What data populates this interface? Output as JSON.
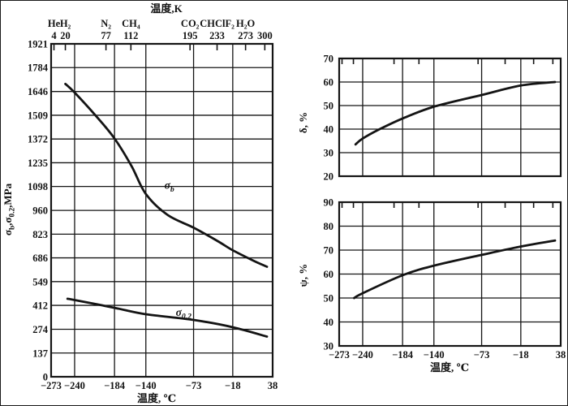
{
  "figure": {
    "background": "#ffffff",
    "ink_color": "#141414",
    "description_visible_text_only": true
  },
  "chart_data": [
    {
      "id": "stress",
      "type": "line",
      "x_axis": {
        "label": "温度, ℃",
        "ticks": [
          -273,
          -240,
          -184,
          -140,
          -73,
          -18,
          38
        ],
        "min_c": -273,
        "max_c": 38,
        "scale": "linear-in-kelvin"
      },
      "top_axis": {
        "label": "温度,K",
        "ticks": [
          {
            "k": 4,
            "gas": "He"
          },
          {
            "k": 20,
            "gas": "H₂"
          },
          {
            "k": 77,
            "gas": "N₂"
          },
          {
            "k": 112,
            "gas": "CH₄"
          },
          {
            "k": 195,
            "gas": "CO₂"
          },
          {
            "k": 233,
            "gas": "CHClF₂"
          },
          {
            "k": 273,
            "gas": "H₂O"
          },
          {
            "k": 300,
            "gas": ""
          }
        ]
      },
      "y_axis": {
        "label_parts": [
          {
            "t": "σ"
          },
          {
            "t": "b",
            "sub": true
          },
          {
            "t": ","
          },
          {
            "t": "σ"
          },
          {
            "t": "0.2",
            "sub": true
          },
          {
            "t": ",MPa"
          }
        ],
        "ticks": [
          0,
          137,
          274,
          412,
          549,
          686,
          823,
          960,
          1098,
          1235,
          1372,
          1509,
          1646,
          1784,
          1921
        ],
        "min": 0,
        "max": 1921,
        "unit": "MPa"
      },
      "show_x_labels": true,
      "show_top_labels": true,
      "series": [
        {
          "key": "sigma-b",
          "label_parts": [
            {
              "t": "σ"
            },
            {
              "t": "b",
              "sub": true
            }
          ],
          "label_pos": [
            -114,
            1085
          ],
          "points": [
            [
              -253,
              1690
            ],
            [
              -240,
              1640
            ],
            [
              -210,
              1505
            ],
            [
              -184,
              1375
            ],
            [
              -160,
              1215
            ],
            [
              -140,
              1055
            ],
            [
              -110,
              935
            ],
            [
              -73,
              860
            ],
            [
              -40,
              785
            ],
            [
              -18,
              730
            ],
            [
              10,
              672
            ],
            [
              30,
              635
            ]
          ]
        },
        {
          "key": "sigma-0-2",
          "label_parts": [
            {
              "t": "σ"
            },
            {
              "t": "0.2",
              "sub": true
            }
          ],
          "label_pos": [
            -98,
            352
          ],
          "points": [
            [
              -250,
              450
            ],
            [
              -240,
              443
            ],
            [
              -184,
              398
            ],
            [
              -140,
              361
            ],
            [
              -73,
              328
            ],
            [
              -18,
              286
            ],
            [
              30,
              232
            ]
          ]
        }
      ]
    },
    {
      "id": "elongation",
      "type": "line",
      "x_axis": {
        "label": "",
        "ticks": [
          -273,
          -240,
          -184,
          -140,
          -73,
          -18,
          38
        ],
        "min_c": -273,
        "max_c": 38,
        "scale": "linear-in-kelvin"
      },
      "top_axis": {
        "label": "",
        "ticks": [
          {
            "k": 4
          },
          {
            "k": 20
          },
          {
            "k": 77
          },
          {
            "k": 112
          },
          {
            "k": 195
          },
          {
            "k": 233
          },
          {
            "k": 273
          },
          {
            "k": 300
          }
        ]
      },
      "y_axis": {
        "label_parts": [
          {
            "t": "δ, %"
          }
        ],
        "ticks": [
          20,
          30,
          40,
          50,
          60,
          70
        ],
        "min": 20,
        "max": 70,
        "unit": "%"
      },
      "show_x_labels": false,
      "show_top_labels": false,
      "series": [
        {
          "key": "delta",
          "points": [
            [
              -250,
              33.5
            ],
            [
              -240,
              36
            ],
            [
              -216,
              40
            ],
            [
              -184,
              44.5
            ],
            [
              -140,
              49.5
            ],
            [
              -73,
              54.5
            ],
            [
              -18,
              58.5
            ],
            [
              30,
              60
            ]
          ]
        }
      ]
    },
    {
      "id": "reduction",
      "type": "line",
      "x_axis": {
        "label": "温度, ℃",
        "ticks": [
          -273,
          -240,
          -184,
          -140,
          -73,
          -18,
          38
        ],
        "min_c": -273,
        "max_c": 38,
        "scale": "linear-in-kelvin"
      },
      "top_axis": {
        "label": "",
        "ticks": [
          {
            "k": 4
          },
          {
            "k": 20
          },
          {
            "k": 77
          },
          {
            "k": 112
          },
          {
            "k": 195
          },
          {
            "k": 233
          },
          {
            "k": 273
          },
          {
            "k": 300
          }
        ]
      },
      "y_axis": {
        "label_parts": [
          {
            "t": "ψ, %"
          }
        ],
        "ticks": [
          30,
          40,
          50,
          60,
          70,
          80,
          90
        ],
        "min": 30,
        "max": 90,
        "unit": "%"
      },
      "show_x_labels": true,
      "show_top_labels": false,
      "series": [
        {
          "key": "psi",
          "points": [
            [
              -252,
              50
            ],
            [
              -240,
              52
            ],
            [
              -184,
              59.5
            ],
            [
              -140,
              63.5
            ],
            [
              -73,
              68
            ],
            [
              -18,
              71.5
            ],
            [
              30,
              74
            ]
          ]
        }
      ]
    }
  ]
}
